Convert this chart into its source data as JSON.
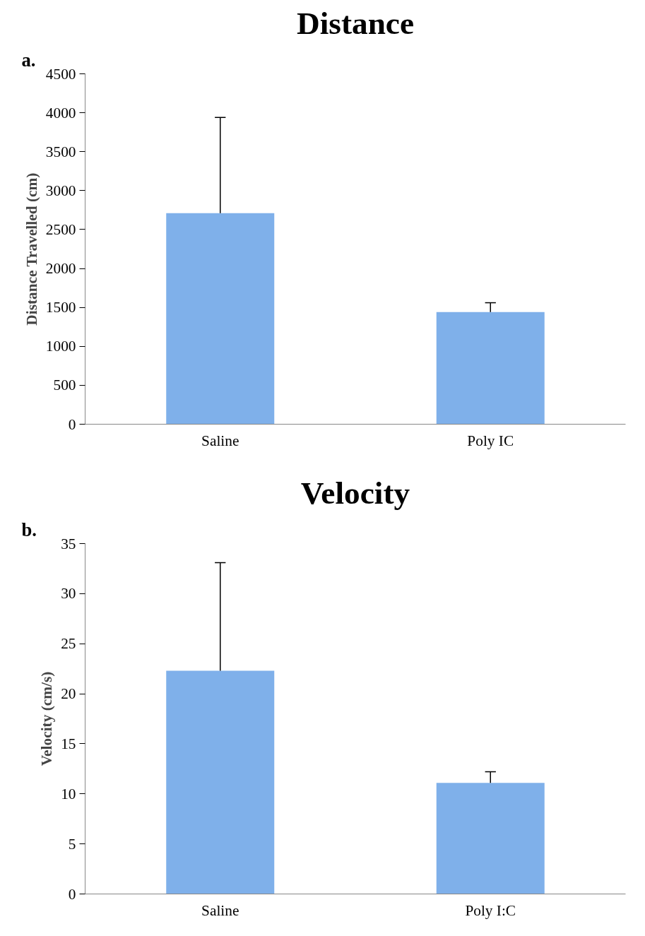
{
  "chart_data": [
    {
      "type": "bar",
      "title": "Distance",
      "ylabel": "Distance Travelled (cm)",
      "annotations": [
        "a."
      ],
      "categories": [
        "Saline",
        "Poly IC"
      ],
      "values": [
        2710,
        1440
      ],
      "errors": [
        [
          2710,
          3940
        ],
        [
          1440,
          1560
        ]
      ],
      "color": "#7fb0ea",
      "ylim": [
        0,
        4500
      ],
      "yticks": [
        0,
        500,
        1000,
        1500,
        2000,
        2500,
        3000,
        3500,
        4000,
        4500
      ],
      "grid": false
    },
    {
      "type": "bar",
      "title": "Velocity",
      "ylabel": "Velocity (cm/s)",
      "annotations": [
        "b."
      ],
      "categories": [
        "Saline",
        "Poly I:C"
      ],
      "values": [
        22.3,
        11.1
      ],
      "errors": [
        [
          22.3,
          33.1
        ],
        [
          11.1,
          12.2
        ]
      ],
      "color": "#7fb0ea",
      "ylim": [
        0,
        35
      ],
      "yticks": [
        0,
        5,
        10,
        15,
        20,
        25,
        30,
        35
      ],
      "grid": false
    }
  ]
}
